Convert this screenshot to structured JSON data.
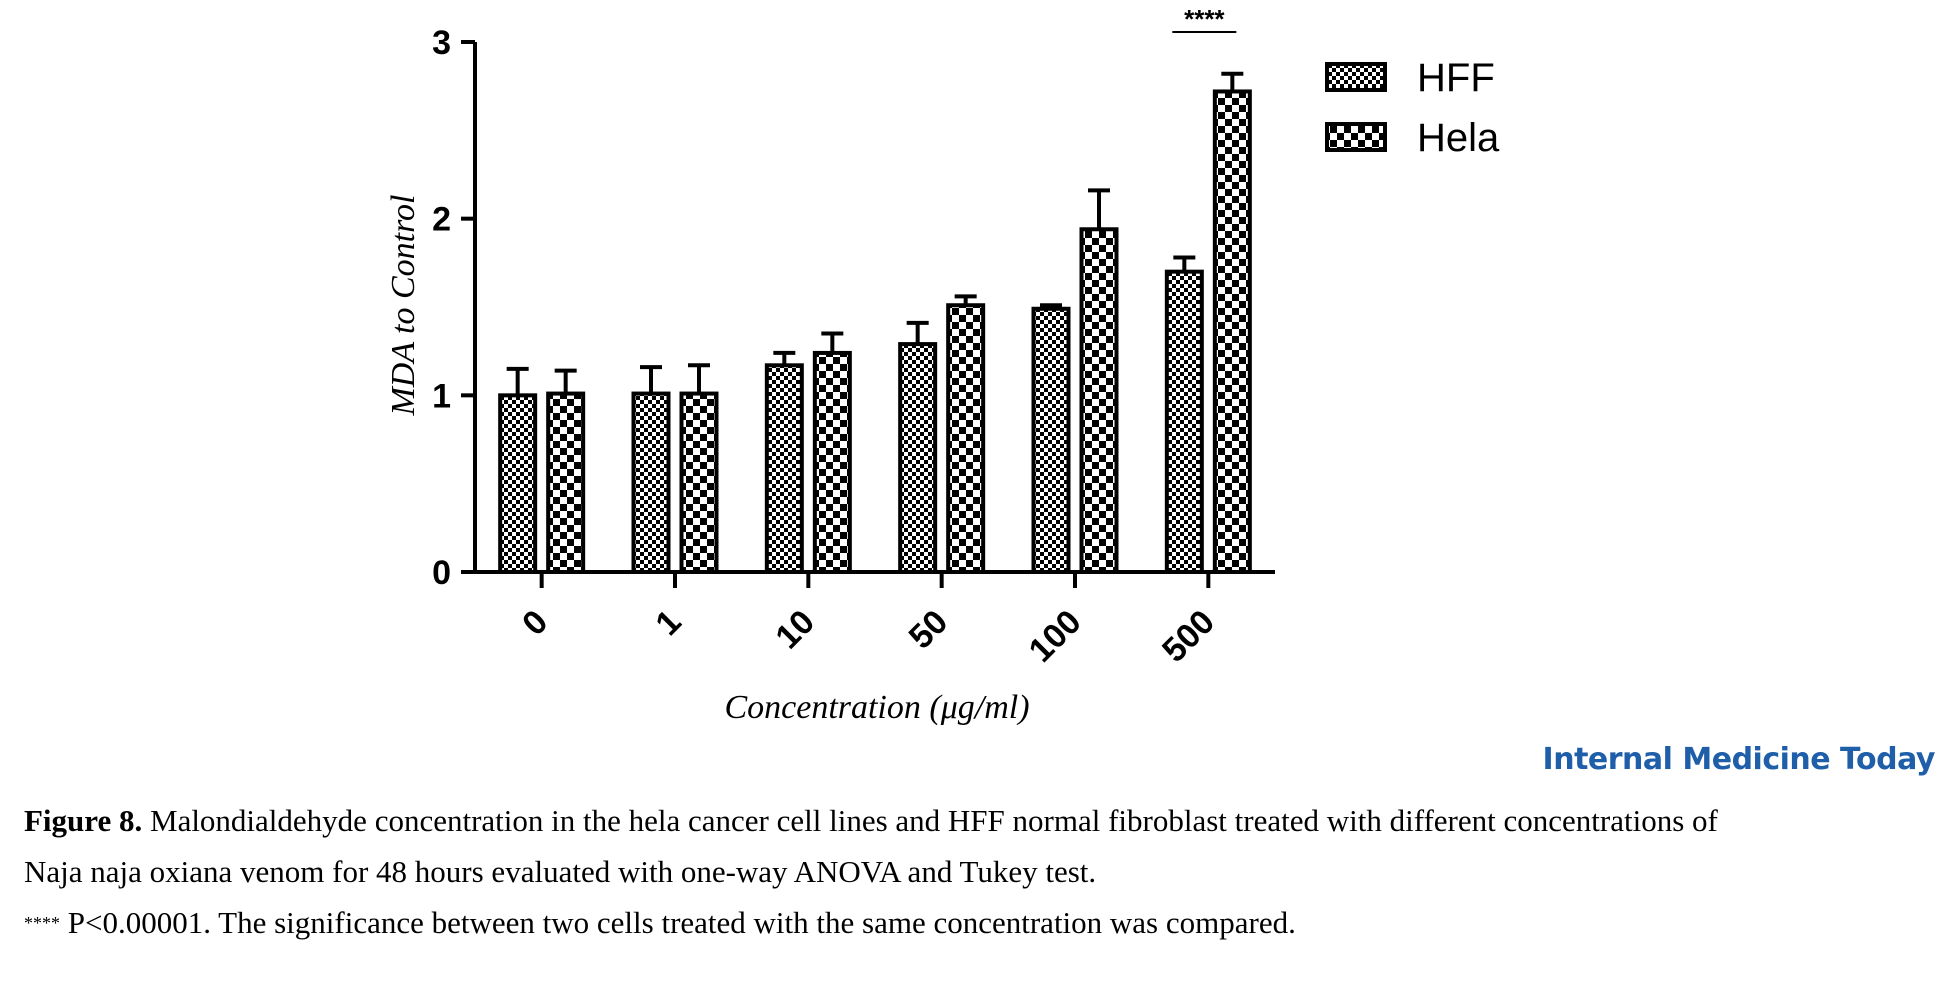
{
  "chart_data": {
    "type": "bar",
    "categories": [
      "0",
      "1",
      "10",
      "50",
      "100",
      "500"
    ],
    "series": [
      {
        "name": "HFF",
        "values": [
          1.0,
          1.01,
          1.17,
          1.29,
          1.49,
          1.7
        ],
        "errors": [
          0.15,
          0.15,
          0.07,
          0.12,
          0.02,
          0.08
        ]
      },
      {
        "name": "Hela",
        "values": [
          1.01,
          1.01,
          1.24,
          1.51,
          1.94,
          2.72
        ],
        "errors": [
          0.13,
          0.16,
          0.11,
          0.05,
          0.22,
          0.1
        ]
      }
    ],
    "xlabel": "Concentration (μg/ml)",
    "ylabel": "MDA to Control",
    "ylim": [
      0,
      3
    ],
    "yticks": [
      "0",
      "1",
      "2",
      "3"
    ],
    "annotations": [
      {
        "category": "500",
        "text": "****"
      }
    ],
    "legend_position": "top-right",
    "grid": false,
    "colors": {
      "ink": "#000000",
      "brand": "#1f5ea8"
    }
  },
  "brand": "Internal Medicine Today",
  "caption": {
    "figure_label": "Figure 8.",
    "line1_text": "Malondialdehyde concentration in the hela cancer cell lines and HFF normal fibroblast treated with different concentrations of",
    "line2_text": "Naja naja oxiana venom for 48 hours evaluated with one-way ANOVA and Tukey test.",
    "note_marker": "****",
    "note_text": "P<0.00001. The significance between two cells treated with the same concentration was compared."
  }
}
